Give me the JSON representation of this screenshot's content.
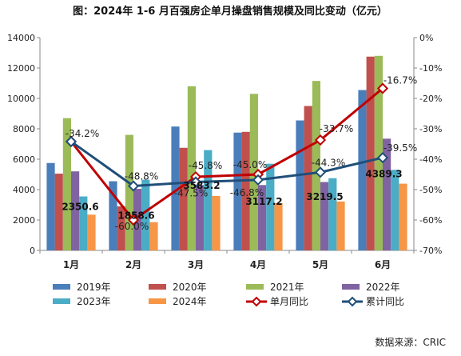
{
  "chart_data": {
    "type": "bar",
    "title": "图：2024年 1-6 月百强房企单月操盘销售规模及同比变动（亿元）",
    "source": "数据来源：CRIC",
    "categories": [
      "1月",
      "2月",
      "3月",
      "4月",
      "5月",
      "6月"
    ],
    "y_left": {
      "min": 0,
      "max": 14000,
      "step": 2000,
      "ticks": [
        "0",
        "2000",
        "4000",
        "6000",
        "8000",
        "10000",
        "12000",
        "14000"
      ]
    },
    "y_right": {
      "min": -70,
      "max": 0,
      "step": 10,
      "ticks": [
        "0%",
        "-10%",
        "-20%",
        "-30%",
        "-40%",
        "-50%",
        "-60%",
        "-70%"
      ]
    },
    "grid": false,
    "legend_position": "bottom",
    "series": [
      {
        "name": "2019年",
        "color": "#4A7EBB",
        "values": [
          5750,
          4550,
          8150,
          7750,
          8550,
          10550
        ]
      },
      {
        "name": "2020年",
        "color": "#C0504D",
        "values": [
          5050,
          2900,
          6750,
          7800,
          9500,
          12750
        ]
      },
      {
        "name": "2021年",
        "color": "#9BBB59",
        "values": [
          8700,
          7600,
          10800,
          10300,
          11150,
          12800
        ]
      },
      {
        "name": "2022年",
        "color": "#8064A2",
        "values": [
          5200,
          4050,
          4300,
          4300,
          4500,
          7350
        ]
      },
      {
        "name": "2023年",
        "color": "#4BACC6",
        "values": [
          3550,
          4650,
          6600,
          5700,
          4750,
          5300
        ]
      },
      {
        "name": "2024年",
        "color": "#F79646",
        "values": [
          2350.6,
          1858.6,
          3583.2,
          3117.2,
          3219.5,
          4389.3
        ]
      }
    ],
    "bar_labels_series": "2024年",
    "bar_labels": [
      "2350.6",
      "1858.6",
      "3583.2",
      "3117.2",
      "3219.5",
      "4389.3"
    ],
    "lines": [
      {
        "name": "单月同比",
        "color": "#C00000",
        "values": [
          -34.2,
          -60.0,
          -45.8,
          -45.0,
          -33.7,
          -16.7
        ],
        "labels": [
          "-34.2%",
          "-60.0%",
          "-45.8%",
          "-45.0%",
          "-33.7%",
          "-16.7%"
        ]
      },
      {
        "name": "累计同比",
        "color": "#1F4E79",
        "values": [
          -34.2,
          -48.8,
          -47.5,
          -46.8,
          -44.3,
          -39.5
        ],
        "labels": [
          "",
          "-48.8%",
          "-47.5%",
          "-46.8%",
          "-44.3%",
          "-39.5%"
        ]
      }
    ]
  }
}
